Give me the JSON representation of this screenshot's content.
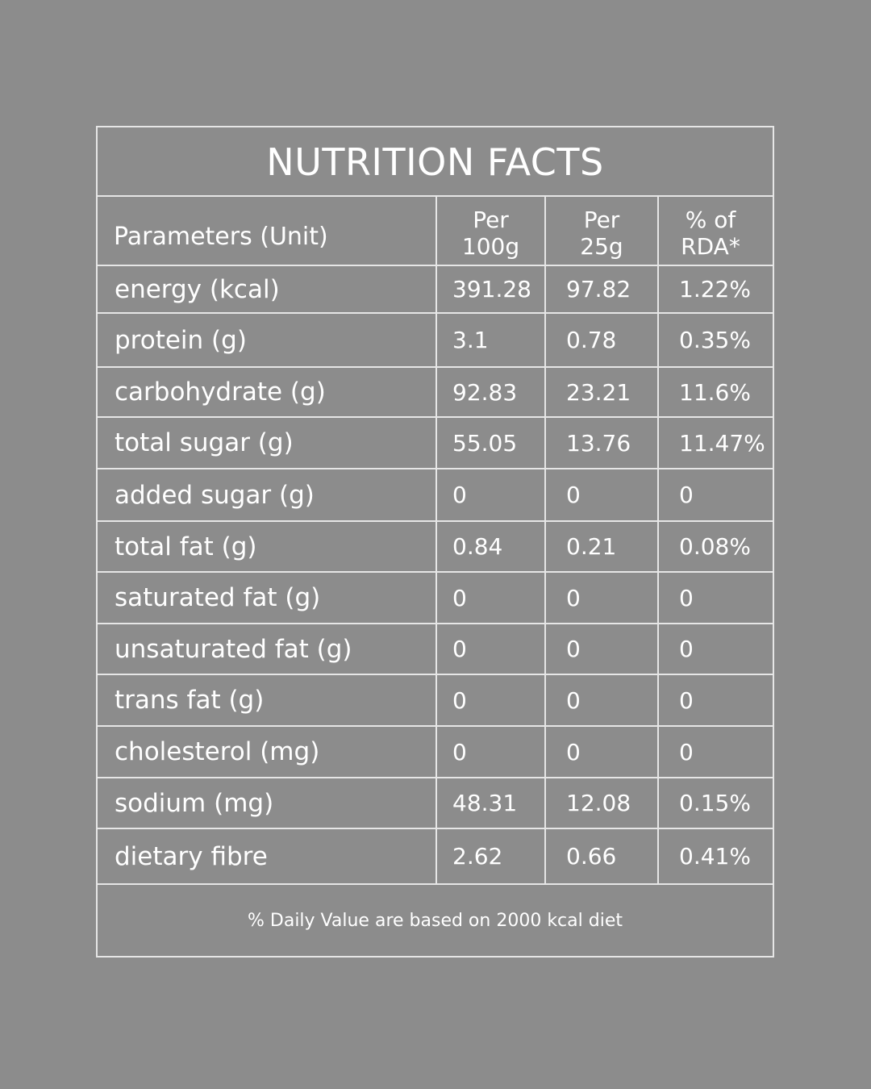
{
  "title": "NUTRITION FACTS",
  "header": {
    "parameter": "Parameters (Unit)",
    "per100_line1": "Per",
    "per100_line2": "100g",
    "per25_line1": "Per",
    "per25_line2": "25g",
    "rda_line1": "% of",
    "rda_line2": "RDA*"
  },
  "rows": [
    {
      "label": "energy (kcal)",
      "per100": "391.28",
      "per25": "97.82",
      "rda": "1.22%"
    },
    {
      "label": "protein (g)",
      "per100": "3.1",
      "per25": "0.78",
      "rda": "0.35%"
    },
    {
      "label": "carbohydrate (g)",
      "per100": "92.83",
      "per25": "23.21",
      "rda": "11.6%"
    },
    {
      "label": "total sugar (g)",
      "per100": "55.05",
      "per25": "13.76",
      "rda": "11.47%"
    },
    {
      "label": "added sugar (g)",
      "per100": "0",
      "per25": "0",
      "rda": "0"
    },
    {
      "label": "total fat (g)",
      "per100": "0.84",
      "per25": "0.21",
      "rda": "0.08%"
    },
    {
      "label": "saturated fat (g)",
      "per100": "0",
      "per25": "0",
      "rda": "0"
    },
    {
      "label": "unsaturated fat (g)",
      "per100": "0",
      "per25": "0",
      "rda": "0"
    },
    {
      "label": "trans fat (g)",
      "per100": "0",
      "per25": "0",
      "rda": "0"
    },
    {
      "label": "cholesterol (mg)",
      "per100": "0",
      "per25": "0",
      "rda": "0"
    },
    {
      "label": "sodium (mg)",
      "per100": "48.31",
      "per25": "12.08",
      "rda": "0.15%"
    },
    {
      "label": "dietary fibre",
      "per100": "2.62",
      "per25": "0.66",
      "rda": "0.41%"
    }
  ],
  "footnote": "% Daily Value are based on 2000 kcal diet",
  "colors": {
    "background": "#8c8c8c",
    "lines": "#e6e6e6",
    "text": "#ffffff"
  }
}
